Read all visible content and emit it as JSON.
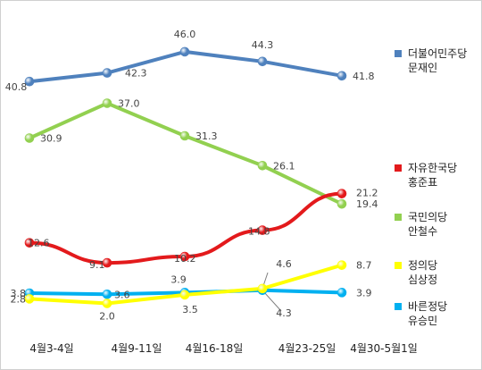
{
  "chart_data": {
    "type": "line",
    "title": "",
    "xlabel": "",
    "ylabel": "",
    "categories": [
      "4월3-4일",
      "4월9-11일",
      "4월16-18일",
      "4월23-25일",
      "4월30-5월1일"
    ],
    "ylim": [
      0,
      48
    ],
    "grid": false,
    "legend_position": "right",
    "series": [
      {
        "name_line1": "더불어민주당",
        "name_line2": "문재인",
        "color": "#4f81bd",
        "values": [
          40.8,
          42.3,
          46.0,
          44.3,
          41.8
        ]
      },
      {
        "name_line1": "자유한국당",
        "name_line2": "홍준표",
        "color": "#e31a1c",
        "values": [
          12.6,
          9.1,
          10.2,
          14.8,
          21.2
        ]
      },
      {
        "name_line1": "국민의당",
        "name_line2": "안철수",
        "color": "#92d050",
        "values": [
          30.9,
          37.0,
          31.3,
          26.1,
          19.4
        ]
      },
      {
        "name_line1": "정의당",
        "name_line2": "심상정",
        "color": "#ffff00",
        "values": [
          2.8,
          2.0,
          3.5,
          4.6,
          8.7
        ]
      },
      {
        "name_line1": "바른정당",
        "name_line2": "유승민",
        "color": "#00b0f0",
        "values": [
          3.8,
          3.6,
          3.9,
          4.3,
          3.9
        ]
      }
    ]
  }
}
